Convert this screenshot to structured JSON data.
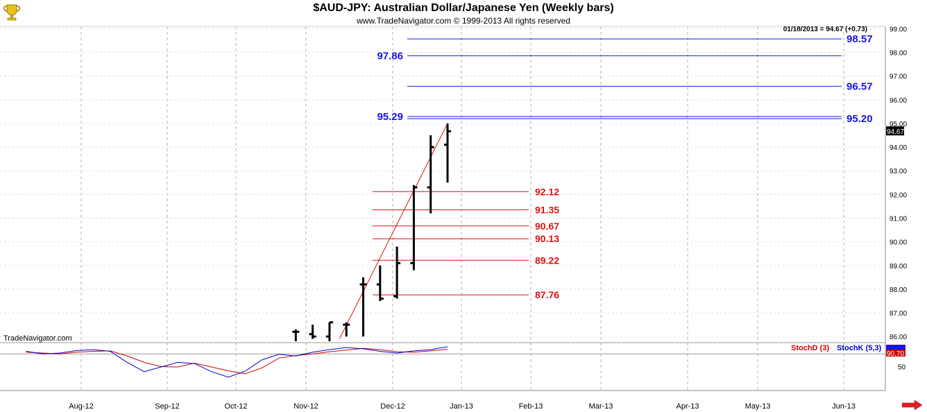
{
  "header": {
    "title": "$AUD-JPY:  Australian Dollar/Japanese Yen  (Weekly bars)",
    "copyright": "www.TradeNavigator.com © 1999-2013 All rights reserved"
  },
  "brand": "TradeNavigator.com",
  "last_quote": "01/18/2013 = 94.67 (+0.73)",
  "price_badge": "94.67",
  "indicator": {
    "stochd_label": "StochD (3)",
    "stochk_label": "StochK (5,3)",
    "value_badge": "90.70",
    "axis_label": "50"
  },
  "colors": {
    "up_levels": "#1515e6",
    "down_levels": "#dd1111",
    "bars": "#000000",
    "trendline": "#dd1111",
    "stochk": "#0000cc",
    "stochd": "#cc0000",
    "grid": "#b0b0b0"
  },
  "chart_data": {
    "type": "bar",
    "title": "$AUD-JPY:  Australian Dollar/Japanese Yen  (Weekly bars)",
    "x_labels": [
      "Aug-12",
      "Sep-12",
      "Oct-12",
      "Nov-12",
      "Dec-12",
      "Jan-13",
      "Feb-13",
      "Mar-13",
      "Apr-13",
      "May-13",
      "Jun-13"
    ],
    "y_ticks": [
      86.0,
      87.0,
      88.0,
      89.0,
      90.0,
      91.0,
      92.0,
      93.0,
      94.0,
      95.0,
      96.0,
      97.0,
      98.0,
      99.0
    ],
    "ylim": [
      85.8,
      99.1
    ],
    "grid": true,
    "ohlc": [
      {
        "week": "Nov-12 w4",
        "open": 86.2,
        "high": 86.3,
        "low": 85.8,
        "close": 86.2
      },
      {
        "week": "Nov-12 w5",
        "open": 86.1,
        "high": 86.5,
        "low": 85.9,
        "close": 86.0
      },
      {
        "week": "Dec-12 w1",
        "open": 86.0,
        "high": 86.6,
        "low": 85.8,
        "close": 86.6
      },
      {
        "week": "Dec-12 w2",
        "open": 86.5,
        "high": 86.6,
        "low": 86.0,
        "close": 86.5
      },
      {
        "week": "Dec-12 w3",
        "open": 88.2,
        "high": 88.5,
        "low": 86.0,
        "close": 88.2
      },
      {
        "week": "Dec-12 w4",
        "open": 88.2,
        "high": 89.0,
        "low": 87.5,
        "close": 87.6
      },
      {
        "week": "Jan-13 w1",
        "open": 87.7,
        "high": 89.8,
        "low": 87.6,
        "close": 89.1
      },
      {
        "week": "Jan-13 w2",
        "open": 89.1,
        "high": 92.4,
        "low": 88.8,
        "close": 92.3
      },
      {
        "week": "Jan-13 w3",
        "open": 92.3,
        "high": 94.5,
        "low": 91.2,
        "close": 94.0
      },
      {
        "week": "Jan-13 w4",
        "open": 94.1,
        "high": 95.0,
        "low": 92.5,
        "close": 94.67
      }
    ],
    "levels_above": [
      {
        "value": 98.57,
        "label": "98.57"
      },
      {
        "value": 97.86,
        "label": "97.86"
      },
      {
        "value": 96.57,
        "label": "96.57"
      },
      {
        "value": 95.29,
        "label": "95.29"
      },
      {
        "value": 95.2,
        "label": "95.20"
      }
    ],
    "levels_below": [
      {
        "value": 92.12,
        "label": "92.12"
      },
      {
        "value": 91.35,
        "label": "91.35"
      },
      {
        "value": 90.67,
        "label": "90.67"
      },
      {
        "value": 90.13,
        "label": "90.13"
      },
      {
        "value": 89.22,
        "label": "89.22"
      },
      {
        "value": 87.76,
        "label": "87.76"
      }
    ],
    "trendline": {
      "from": {
        "week": "Dec-12 w2",
        "price": 85.9
      },
      "to": {
        "week": "Jan-13 w4",
        "price": 95.0
      }
    },
    "stochastic": {
      "ylim": [
        0,
        100
      ],
      "weeks": [
        "Jul-12 w4",
        "Aug-12 w1",
        "Aug-12 w2",
        "Aug-12 w3",
        "Aug-12 w4",
        "Sep-12 w1",
        "Sep-12 w2",
        "Sep-12 w3",
        "Sep-12 w4",
        "Oct-12 w1",
        "Oct-12 w2",
        "Oct-12 w3",
        "Oct-12 w4",
        "Nov-12 w1",
        "Nov-12 w2",
        "Nov-12 w3",
        "Nov-12 w4",
        "Nov-12 w5",
        "Dec-12 w1",
        "Dec-12 w2",
        "Dec-12 w3",
        "Dec-12 w4",
        "Jan-13 w1",
        "Jan-13 w2",
        "Jan-13 w3",
        "Jan-13 w4"
      ],
      "stochk": [
        86,
        80,
        82,
        88,
        90,
        86,
        60,
        38,
        49,
        60,
        57,
        38,
        25,
        39,
        66,
        79,
        75,
        84,
        90,
        95,
        92,
        86,
        82,
        87,
        90,
        97
      ],
      "stochd": [
        84,
        82,
        80,
        84,
        86,
        87,
        75,
        60,
        50,
        49,
        58,
        49,
        40,
        33,
        47,
        70,
        76,
        80,
        85,
        89,
        93,
        90,
        85,
        84,
        87,
        91
      ]
    }
  }
}
